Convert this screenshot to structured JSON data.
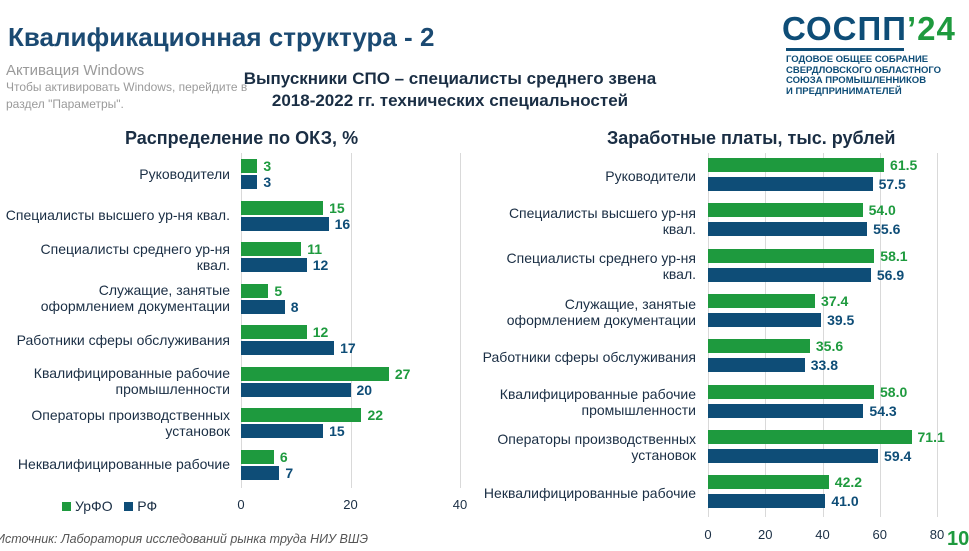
{
  "title": "Квалификационная структура - 2",
  "logo": {
    "name": "СОСПП",
    "year": "’24",
    "lines": [
      "ГОДОВОЕ ОБЩЕЕ СОБРАНИЕ",
      "СВЕРДЛОВСКОГО ОБЛАСТНОГО",
      "СОЮЗА ПРОМЫШЛЕННИКОВ",
      "И ПРЕДПРИНИМАТЕЛЕЙ"
    ]
  },
  "subtitle": [
    "Выпускники СПО – специалисты среднего звена",
    "2018-2022 гг. технических специальностей"
  ],
  "colors": {
    "urfo": "#1e9a3e",
    "rf": "#0e4d77"
  },
  "legend": [
    "УрФО",
    "РФ"
  ],
  "source": "Источник: Лаборатория исследований рынка труда НИУ ВШЭ",
  "watermark": [
    "Активация Windows",
    "Чтобы активировать Windows, перейдите в",
    "раздел \"Параметры\"."
  ],
  "page_number": "10",
  "chart_data": [
    {
      "type": "bar",
      "orientation": "horizontal",
      "title": "Распределение по ОКЗ, %",
      "categories": [
        "Руководители",
        "Специалисты высшего ур-ня квал.",
        "Специалисты среднего ур-ня квал.",
        "Служащие, занятые оформлением документации",
        "Работники сферы обслуживания",
        "Квалифицированные рабочие промышленности",
        "Операторы производственных установок",
        "Неквалифицированные рабочие"
      ],
      "series": [
        {
          "name": "УрФО",
          "values": [
            3,
            15,
            11,
            5,
            12,
            27,
            22,
            6
          ]
        },
        {
          "name": "РФ",
          "values": [
            3,
            16,
            12,
            8,
            17,
            20,
            15,
            7
          ]
        }
      ],
      "xlim": [
        0,
        40
      ],
      "xticks": [
        0,
        20,
        40
      ],
      "grid": true,
      "legend": "bottom-left"
    },
    {
      "type": "bar",
      "orientation": "horizontal",
      "title": "Заработные платы, тыс. рублей",
      "categories": [
        "Руководители",
        "Специалисты высшего ур-ня квал.",
        "Специалисты среднего ур-ня квал.",
        "Служащие, занятые оформлением документации",
        "Работники сферы обслуживания",
        "Квалифицированные рабочие промышленности",
        "Операторы производственных установок",
        "Неквалифицированные рабочие"
      ],
      "series": [
        {
          "name": "УрФО",
          "values": [
            61.5,
            54.0,
            58.1,
            37.4,
            35.6,
            58.0,
            71.1,
            42.2
          ]
        },
        {
          "name": "РФ",
          "values": [
            57.5,
            55.6,
            56.9,
            39.5,
            33.8,
            54.3,
            59.4,
            41.0
          ]
        }
      ],
      "xlim": [
        0,
        80
      ],
      "xticks": [
        0,
        20,
        40,
        60,
        80
      ],
      "grid": true,
      "decimals": 1
    }
  ]
}
